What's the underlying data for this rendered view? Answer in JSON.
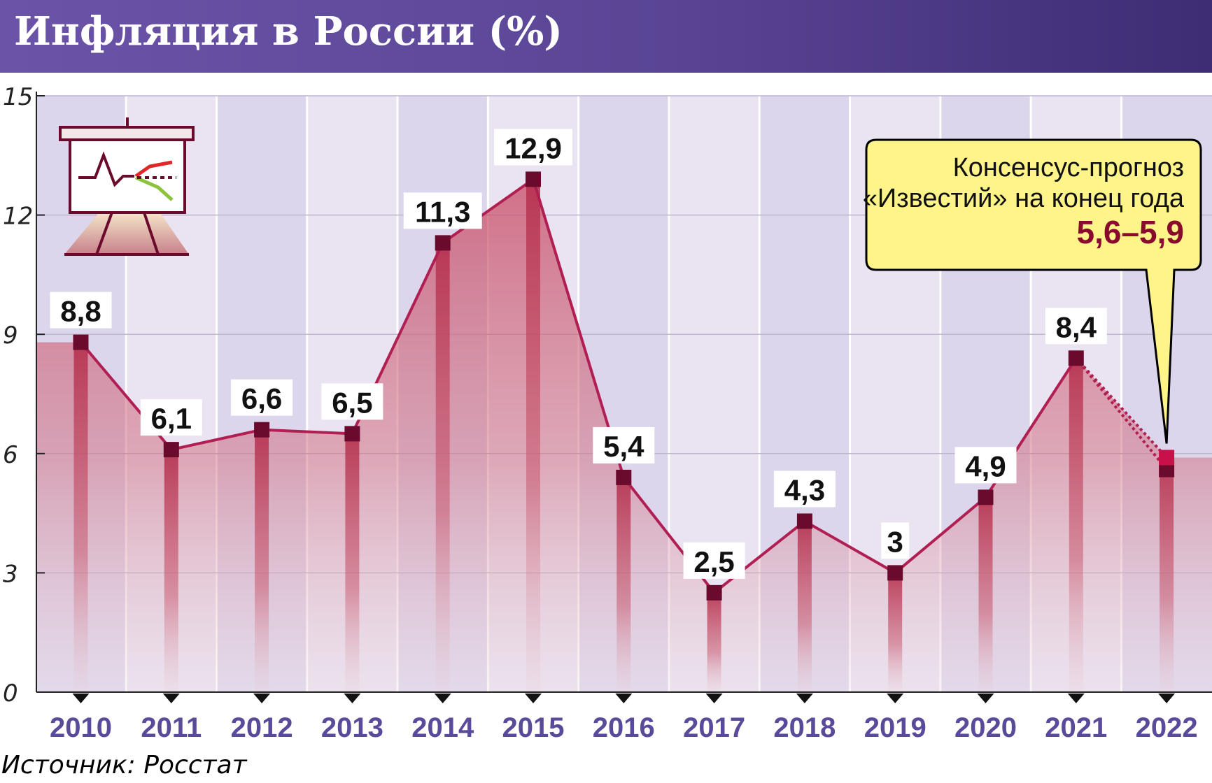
{
  "title": "Инфляция в России (%)",
  "source": "Источник: Росстат",
  "colors": {
    "header": "#5a4595",
    "line": "#b01e52",
    "marker": "#6a0a2c",
    "forecast_marker": "#c8104a",
    "callout_fill": "#fff48a",
    "callout_range": "#8a0a2e",
    "year_label": "#5a4a9a"
  },
  "chart_data": {
    "type": "line",
    "categories": [
      "2010",
      "2011",
      "2012",
      "2013",
      "2014",
      "2015",
      "2016",
      "2017",
      "2018",
      "2019",
      "2020",
      "2021",
      "2022"
    ],
    "values": [
      8.8,
      6.1,
      6.6,
      6.5,
      11.3,
      12.9,
      5.4,
      2.5,
      4.3,
      3,
      4.9,
      8.4,
      5.6
    ],
    "value_labels": [
      "8,8",
      "6,1",
      "6,6",
      "6,5",
      "11,3",
      "12,9",
      "5,4",
      "2,5",
      "4,3",
      "3",
      "4,9",
      "8,4",
      ""
    ],
    "forecast": {
      "category": "2022",
      "low": 5.6,
      "high": 5.9
    },
    "ylim": [
      0,
      15
    ],
    "yticks": [
      0,
      3,
      6,
      9,
      12,
      15
    ],
    "grid": true,
    "legend": "none",
    "callout": {
      "line1": "Консенсус-прогноз",
      "line2": "«Известий» на конец года",
      "range": "5,6–5,9"
    }
  },
  "icons": [
    "presentation-board-icon"
  ]
}
